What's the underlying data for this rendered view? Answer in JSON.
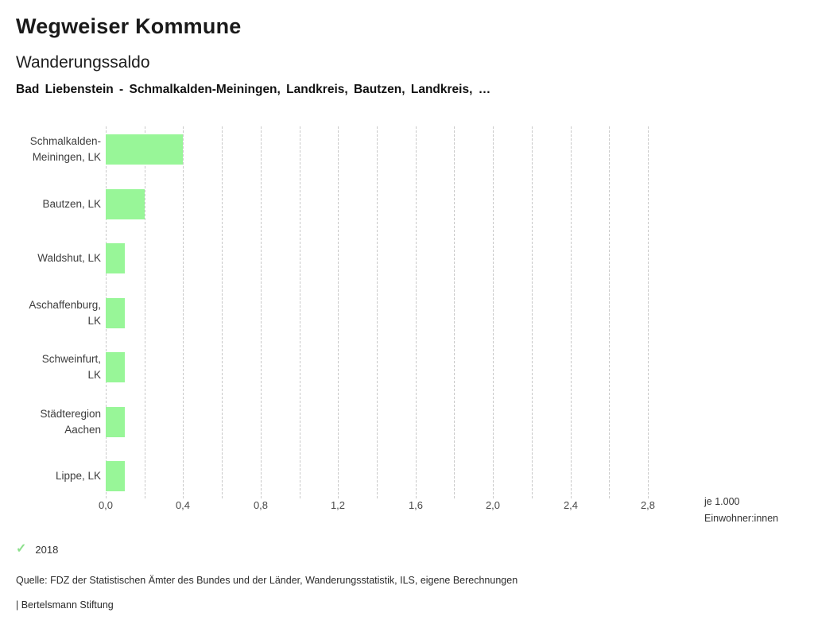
{
  "header": {
    "brand": "Wegweiser Kommune",
    "title": "Wanderungssaldo",
    "subtitle": "Bad Liebenstein - Schmalkalden-Meiningen, Landkreis, Bautzen, Landkreis, …"
  },
  "chart_data": {
    "type": "bar",
    "orientation": "horizontal",
    "title": "Wanderungssaldo",
    "categories": [
      "Schmalkalden-\nMeiningen, LK",
      "Bautzen, LK",
      "Waldshut, LK",
      "Aschaffenburg,\nLK",
      "Schweinfurt,\nLK",
      "Städteregion\nAachen",
      "Lippe, LK"
    ],
    "series": [
      {
        "name": "2018",
        "values": [
          0.4,
          0.2,
          0.1,
          0.1,
          0.1,
          0.1,
          0.1
        ]
      }
    ],
    "xlim": [
      0,
      2.8
    ],
    "grid_step": 0.2,
    "xtick_step": 0.4,
    "xticks": [
      "0,0",
      "0,4",
      "0,8",
      "1,2",
      "1,6",
      "2,0",
      "2,4",
      "2,8"
    ],
    "xlabel": "je 1.000\nEinwohner:innen",
    "ylabel": "",
    "grid": true,
    "legend_position": "bottom-left"
  },
  "legend": {
    "check_icon": "✓",
    "label": "2018"
  },
  "footer": {
    "source": "Quelle: FDZ der Statistischen Ämter des Bundes und der Länder, Wanderungsstatistik, ILS, eigene Berechnungen",
    "attribution": "| Bertelsmann Stiftung"
  },
  "colors": {
    "bar": "#98f698",
    "check": "#8ce08c",
    "grid": "#c9c9c9",
    "text": "#1a1a1a"
  }
}
